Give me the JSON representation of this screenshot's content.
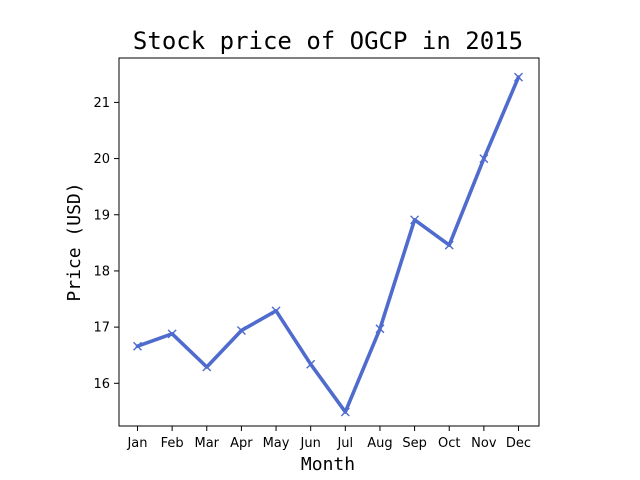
{
  "chart_data": {
    "type": "line",
    "title": "Stock price of OGCP in 2015",
    "xlabel": "Month",
    "ylabel": "Price (USD)",
    "categories": [
      "Jan",
      "Feb",
      "Mar",
      "Apr",
      "May",
      "Jun",
      "Jul",
      "Aug",
      "Sep",
      "Oct",
      "Nov",
      "Dec"
    ],
    "series": [
      {
        "values": [
          16.66,
          16.88,
          16.29,
          16.94,
          17.29,
          16.34,
          15.49,
          16.97,
          18.91,
          18.46,
          20.0,
          21.45
        ],
        "color": "#4f6bce",
        "marker": "x"
      }
    ],
    "ylim": [
      15.24,
      21.79
    ],
    "yticks": [
      16,
      17,
      18,
      19,
      20,
      21
    ],
    "grid": false,
    "legend": "none"
  }
}
